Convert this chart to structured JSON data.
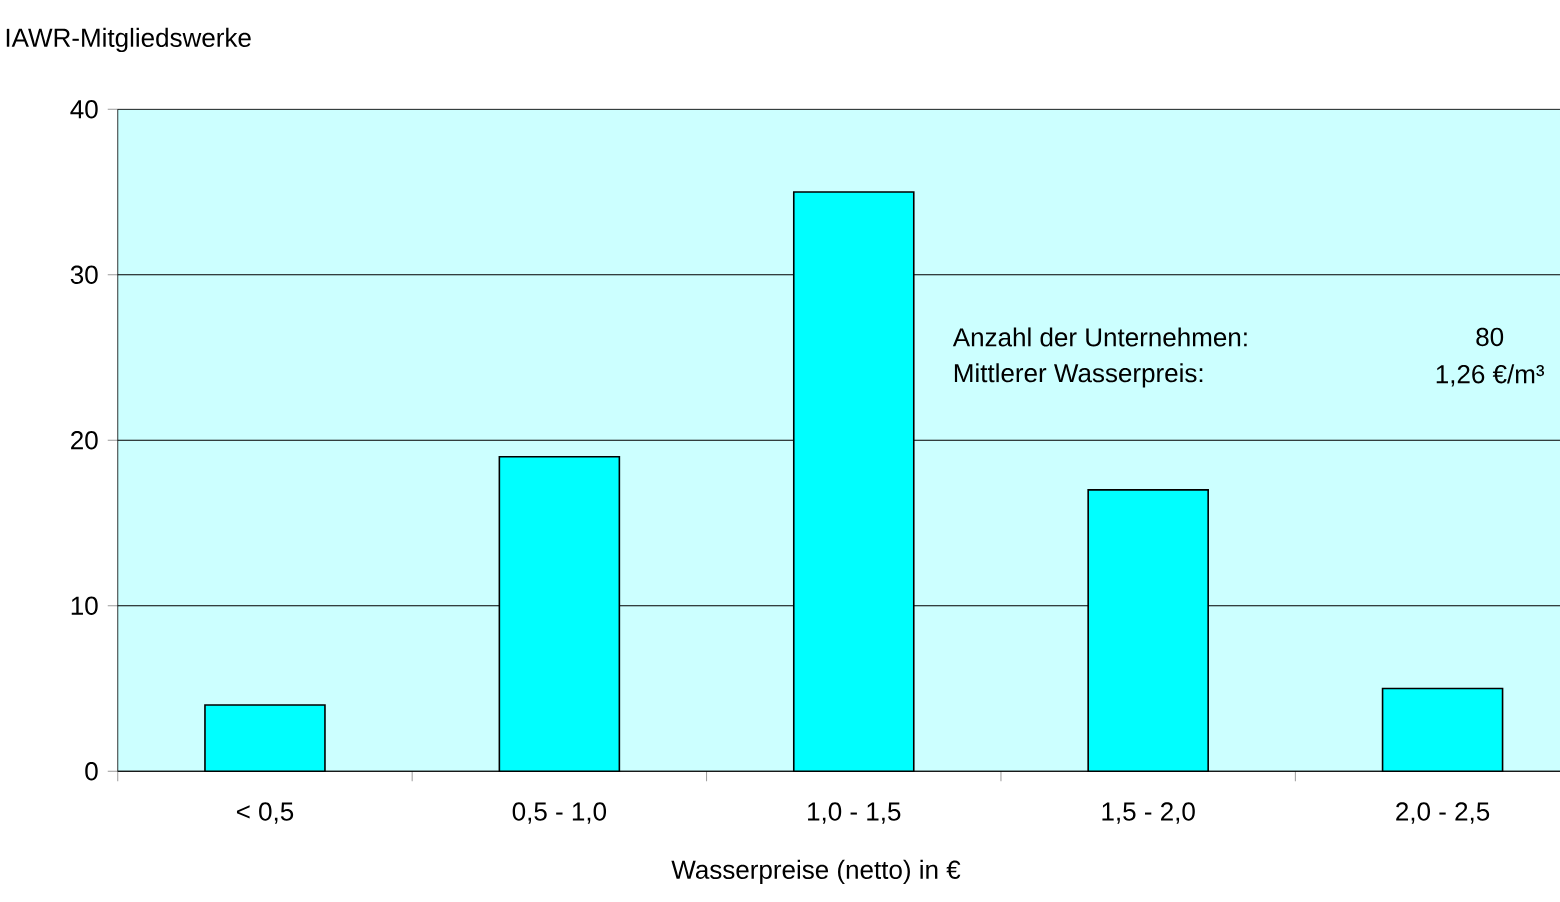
{
  "chart_data": {
    "type": "bar",
    "ylabel": "IAWR-Mitgliedswerke",
    "xlabel": "Wasserpreise (netto) in €",
    "categories": [
      "< 0,5",
      "0,5 - 1,0",
      "1,0 - 1,5",
      "1,5 - 2,0",
      "2,0 - 2,5"
    ],
    "values": [
      4,
      19,
      35,
      17,
      5
    ],
    "color": "#00ffff",
    "ylim": [
      0,
      40
    ],
    "yticks": [
      0,
      10,
      20,
      30,
      40
    ],
    "grid": "y",
    "annotations": [
      "Anzahl der Unternehmen:",
      "80",
      "Mittlerer Wasserpreis:",
      "1,26 €/m³"
    ]
  }
}
